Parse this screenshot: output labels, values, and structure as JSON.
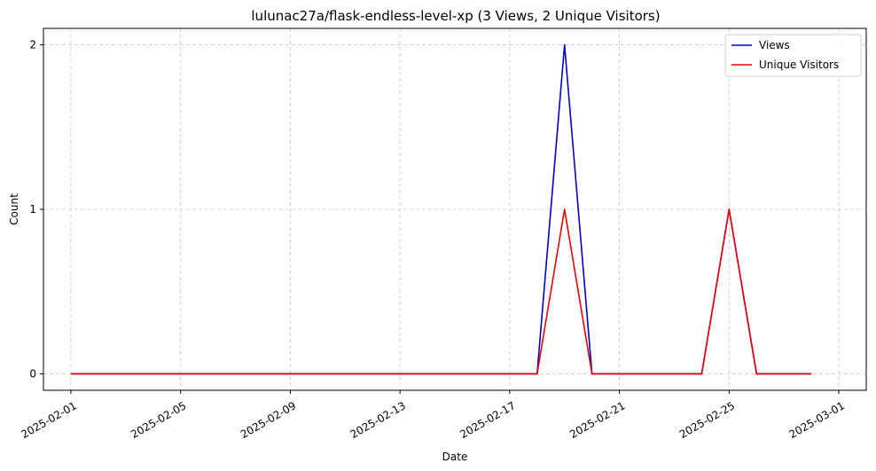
{
  "chart_data": {
    "type": "line",
    "title": "lulunac27a/flask-endless-level-xp (3 Views, 2 Unique Visitors)",
    "xlabel": "Date",
    "ylabel": "Count",
    "x": [
      "2025-02-01",
      "2025-02-02",
      "2025-02-03",
      "2025-02-04",
      "2025-02-05",
      "2025-02-06",
      "2025-02-07",
      "2025-02-08",
      "2025-02-09",
      "2025-02-10",
      "2025-02-11",
      "2025-02-12",
      "2025-02-13",
      "2025-02-14",
      "2025-02-15",
      "2025-02-16",
      "2025-02-17",
      "2025-02-18",
      "2025-02-19",
      "2025-02-20",
      "2025-02-21",
      "2025-02-22",
      "2025-02-23",
      "2025-02-24",
      "2025-02-25",
      "2025-02-26",
      "2025-02-27",
      "2025-02-28"
    ],
    "series": [
      {
        "name": "Views",
        "color": "#0000cc",
        "values": [
          0,
          0,
          0,
          0,
          0,
          0,
          0,
          0,
          0,
          0,
          0,
          0,
          0,
          0,
          0,
          0,
          0,
          0,
          2,
          0,
          0,
          0,
          0,
          0,
          1,
          0,
          0,
          0
        ]
      },
      {
        "name": "Unique Visitors",
        "color": "#ee0000",
        "values": [
          0,
          0,
          0,
          0,
          0,
          0,
          0,
          0,
          0,
          0,
          0,
          0,
          0,
          0,
          0,
          0,
          0,
          0,
          1,
          0,
          0,
          0,
          0,
          0,
          1,
          0,
          0,
          0
        ]
      }
    ],
    "xticks": [
      "2025-02-01",
      "2025-02-05",
      "2025-02-09",
      "2025-02-13",
      "2025-02-17",
      "2025-02-21",
      "2025-02-25",
      "2025-03-01"
    ],
    "yticks": [
      0,
      1,
      2
    ],
    "xlim": [
      "2025-01-31",
      "2025-03-02"
    ],
    "ylim": [
      -0.1,
      2.1
    ],
    "grid": true,
    "legend": "top-right"
  }
}
